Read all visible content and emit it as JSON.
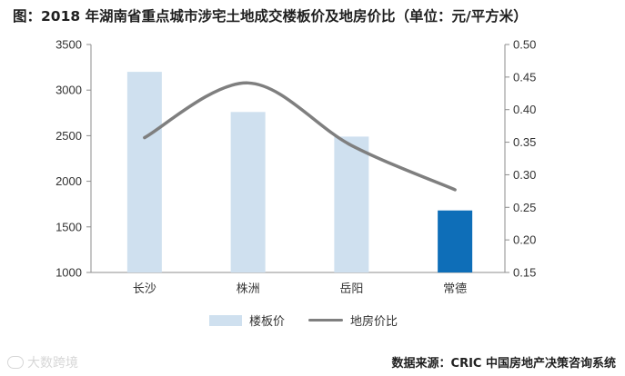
{
  "title": "图：2018 年湖南省重点城市涉宅土地成交楼板价及地房价比（单位：元/平方米）",
  "source": "数据来源：CRIC 中国房地产决策咨询系统",
  "watermark": "大数跨境",
  "colors": {
    "bar": "#cfe0ef",
    "bar_highlight": "#0e6eb8",
    "line": "#7f7f7f",
    "axis": "#8c8c8c"
  },
  "chart_data": {
    "type": "bar",
    "categories": [
      "长沙",
      "株洲",
      "岳阳",
      "常德"
    ],
    "series": [
      {
        "name": "楼板价",
        "type": "bar",
        "axis": "left",
        "values": [
          3200,
          2760,
          2490,
          1680
        ]
      },
      {
        "name": "地房价比",
        "type": "line",
        "axis": "right",
        "values": [
          0.357,
          0.441,
          0.345,
          0.277
        ]
      }
    ],
    "y_left": {
      "min": 1000,
      "max": 3500,
      "ticks": [
        "1000",
        "1500",
        "2000",
        "2500",
        "3000",
        "3500"
      ]
    },
    "y_right": {
      "min": 0.15,
      "max": 0.5,
      "ticks": [
        "0.15",
        "0.20",
        "0.25",
        "0.30",
        "0.35",
        "0.40",
        "0.45",
        "0.50"
      ]
    },
    "highlight_index": 3,
    "legend_position": "bottom",
    "grid": false
  }
}
